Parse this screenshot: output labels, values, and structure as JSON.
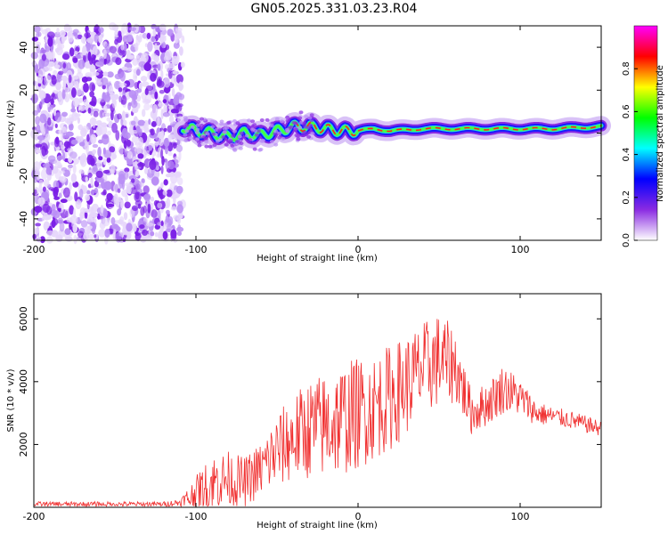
{
  "title": "GN05.2025.331.03.23.R04",
  "chart_data": [
    {
      "type": "heatmap",
      "title": "GN05.2025.331.03.23.R04",
      "xlabel": "Height of straight line (km)",
      "ylabel": "Frequency (Hz)",
      "xlim": [
        -200,
        150
      ],
      "ylim": [
        -50,
        50
      ],
      "xticks": [
        "-200",
        "-100",
        "0",
        "100"
      ],
      "yticks": [
        "-40",
        "-20",
        "0",
        "20",
        "40"
      ],
      "ridge": {
        "x": [
          -108,
          -100,
          -90,
          -80,
          -70,
          -60,
          -50,
          -40,
          -30,
          -20,
          -10,
          0,
          10,
          20,
          40,
          60,
          80,
          100,
          120,
          150
        ],
        "y": [
          3,
          1,
          0,
          -2,
          0,
          -1,
          1,
          3,
          3,
          2,
          1,
          1,
          2,
          1,
          2,
          2,
          2,
          2,
          2,
          3
        ]
      },
      "noise_region_x": [
        -200,
        -108
      ],
      "colorbar": {
        "label": "Normalized spectral amplitude",
        "range": [
          0,
          1
        ],
        "ticks": [
          "0.0",
          "0.2",
          "0.4",
          "0.6",
          "0.8"
        ],
        "colormap": [
          "#ffffff",
          "#8a2be2",
          "#0000ff",
          "#00ffff",
          "#00ff00",
          "#ffff00",
          "#ff0000",
          "#ff00ff"
        ]
      }
    },
    {
      "type": "line",
      "xlabel": "Height of straight line (km)",
      "ylabel": "SNR (10 * v/v)",
      "xlim": [
        -200,
        150
      ],
      "ylim": [
        0,
        6800
      ],
      "xticks": [
        "-200",
        "-100",
        "0",
        "100"
      ],
      "yticks": [
        "2000",
        "4000",
        "6000"
      ],
      "color": "#f03030",
      "envelope": {
        "x": [
          -200,
          -120,
          -110,
          -100,
          -90,
          -80,
          -70,
          -60,
          -50,
          -40,
          -30,
          -20,
          -10,
          0,
          10,
          20,
          30,
          40,
          50,
          60,
          70,
          80,
          90,
          100,
          110,
          120,
          130,
          150
        ],
        "mean": [
          100,
          100,
          150,
          400,
          800,
          900,
          800,
          1200,
          1800,
          2200,
          2500,
          2600,
          2800,
          3000,
          3200,
          3500,
          3900,
          4400,
          4700,
          4500,
          3000,
          3300,
          3800,
          3500,
          3000,
          2900,
          2800,
          2500
        ],
        "amplitude": [
          80,
          80,
          120,
          600,
          900,
          900,
          800,
          900,
          1200,
          1400,
          1600,
          1700,
          1800,
          1800,
          1700,
          1700,
          1600,
          1500,
          1500,
          1200,
          700,
          700,
          800,
          600,
          400,
          300,
          300,
          250
        ]
      }
    }
  ]
}
